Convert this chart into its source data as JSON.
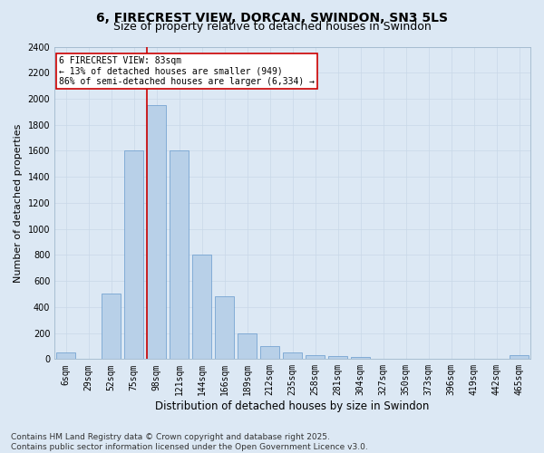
{
  "title": "6, FIRECREST VIEW, DORCAN, SWINDON, SN3 5LS",
  "subtitle": "Size of property relative to detached houses in Swindon",
  "xlabel": "Distribution of detached houses by size in Swindon",
  "ylabel": "Number of detached properties",
  "categories": [
    "6sqm",
    "29sqm",
    "52sqm",
    "75sqm",
    "98sqm",
    "121sqm",
    "144sqm",
    "166sqm",
    "189sqm",
    "212sqm",
    "235sqm",
    "258sqm",
    "281sqm",
    "304sqm",
    "327sqm",
    "350sqm",
    "373sqm",
    "396sqm",
    "419sqm",
    "442sqm",
    "465sqm"
  ],
  "values": [
    50,
    0,
    500,
    1600,
    1950,
    1600,
    800,
    480,
    200,
    100,
    50,
    30,
    20,
    15,
    5,
    5,
    3,
    3,
    0,
    0,
    30
  ],
  "bar_color": "#b8d0e8",
  "bar_edge_color": "#6699cc",
  "property_line_color": "#cc0000",
  "property_line_x": 3.57,
  "annotation_text": "6 FIRECREST VIEW: 83sqm\n← 13% of detached houses are smaller (949)\n86% of semi-detached houses are larger (6,334) →",
  "annotation_box_edge_color": "#cc0000",
  "ylim": [
    0,
    2400
  ],
  "yticks": [
    0,
    200,
    400,
    600,
    800,
    1000,
    1200,
    1400,
    1600,
    1800,
    2000,
    2200,
    2400
  ],
  "grid_color": "#c8d8e8",
  "bg_color": "#dce8f4",
  "footer": "Contains HM Land Registry data © Crown copyright and database right 2025.\nContains public sector information licensed under the Open Government Licence v3.0.",
  "title_fontsize": 10,
  "subtitle_fontsize": 9,
  "axis_label_fontsize": 8,
  "tick_fontsize": 7,
  "footer_fontsize": 6.5
}
